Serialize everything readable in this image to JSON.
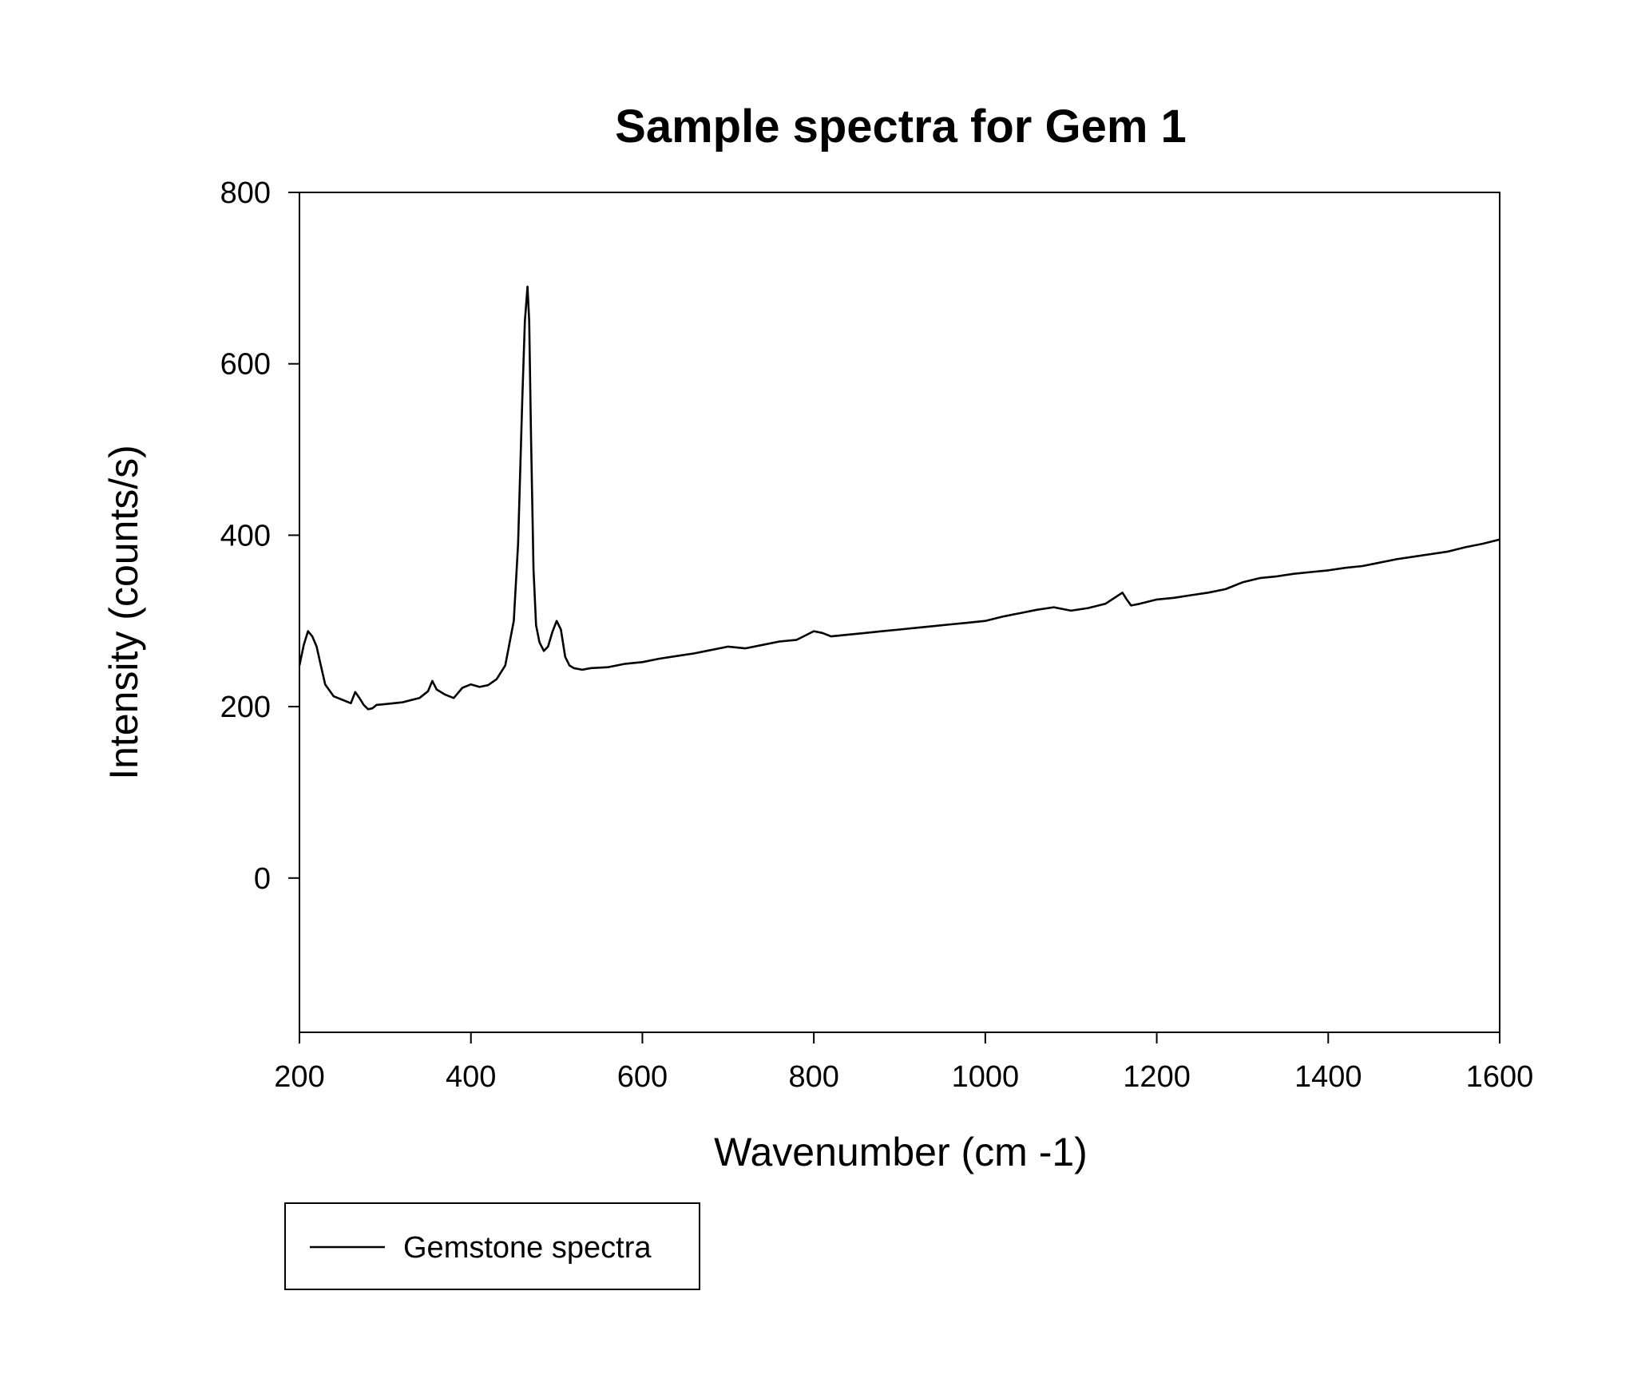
{
  "chart_data": {
    "type": "line",
    "title": "Sample spectra for Gem 1",
    "xlabel": "Wavenumber (cm -1)",
    "ylabel": "Intensity (counts/s)",
    "xlim": [
      200,
      1600
    ],
    "ylim": [
      -180,
      800
    ],
    "xticks": [
      200,
      400,
      600,
      800,
      1000,
      1200,
      1400,
      1600
    ],
    "yticks": [
      0,
      200,
      400,
      600,
      800
    ],
    "grid": false,
    "legend_position": "bottom-left, below plot",
    "line_color": "#000000",
    "series": [
      {
        "name": "Gemstone spectra",
        "x": [
          200,
          205,
          210,
          215,
          220,
          225,
          230,
          240,
          250,
          260,
          265,
          270,
          275,
          280,
          285,
          290,
          300,
          320,
          340,
          350,
          355,
          360,
          370,
          380,
          390,
          400,
          410,
          420,
          430,
          440,
          450,
          455,
          460,
          463,
          466,
          468,
          470,
          473,
          476,
          480,
          485,
          490,
          495,
          500,
          505,
          510,
          515,
          520,
          530,
          540,
          560,
          580,
          600,
          620,
          640,
          660,
          680,
          700,
          720,
          740,
          760,
          780,
          800,
          810,
          820,
          840,
          860,
          880,
          900,
          920,
          940,
          960,
          980,
          1000,
          1020,
          1040,
          1060,
          1080,
          1100,
          1120,
          1140,
          1160,
          1165,
          1170,
          1180,
          1200,
          1220,
          1240,
          1260,
          1280,
          1300,
          1320,
          1340,
          1360,
          1380,
          1400,
          1420,
          1440,
          1460,
          1480,
          1500,
          1520,
          1540,
          1560,
          1580,
          1600
        ],
        "y": [
          248,
          272,
          288,
          282,
          270,
          248,
          226,
          212,
          208,
          204,
          217,
          210,
          202,
          197,
          198,
          202,
          203,
          205,
          210,
          218,
          230,
          220,
          214,
          210,
          222,
          226,
          223,
          225,
          232,
          248,
          300,
          390,
          560,
          650,
          690,
          650,
          520,
          360,
          295,
          275,
          265,
          270,
          287,
          300,
          290,
          258,
          248,
          245,
          243,
          245,
          246,
          250,
          252,
          256,
          259,
          262,
          266,
          270,
          268,
          272,
          276,
          278,
          288,
          286,
          282,
          284,
          286,
          288,
          290,
          292,
          294,
          296,
          298,
          300,
          305,
          309,
          313,
          316,
          312,
          315,
          320,
          333,
          325,
          318,
          320,
          325,
          327,
          330,
          333,
          337,
          345,
          350,
          352,
          355,
          357,
          359,
          362,
          364,
          368,
          372,
          375,
          378,
          381,
          386,
          390,
          395
        ]
      }
    ]
  }
}
